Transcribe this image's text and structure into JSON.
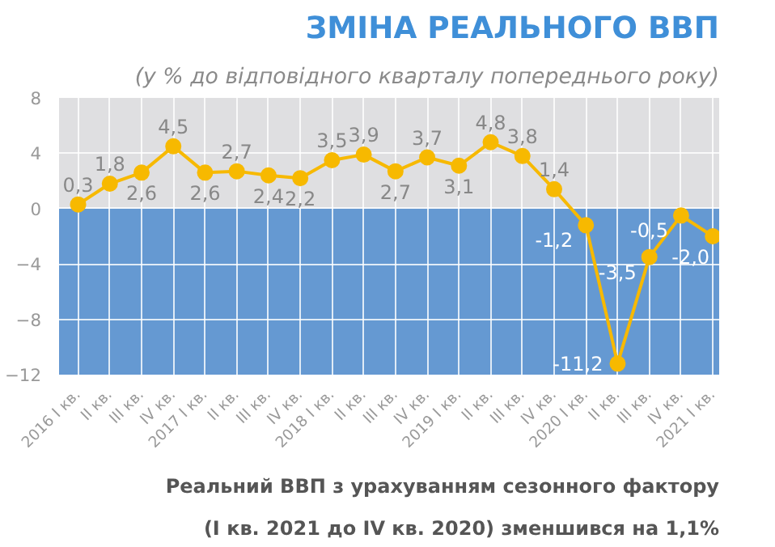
{
  "chart_data": {
    "type": "line",
    "title": "ЗМІНА РЕАЛЬНОГО ВВП",
    "subtitle": "(у % до відповідного кварталу попереднього року)",
    "categories": [
      "2016 I кв.",
      "II кв.",
      "III кв.",
      "IV кв.",
      "2017 I кв.",
      "II кв.",
      "III кв.",
      "IV кв.",
      "2018 I кв.",
      "II кв.",
      "III кв.",
      "IV кв.",
      "2019 I кв.",
      "II кв.",
      "III кв.",
      "IV кв.",
      "2020 I кв.",
      "II кв.",
      "III кв.",
      "IV кв.",
      "2021 I кв."
    ],
    "series": [
      {
        "color": "#f7b900",
        "values": [
          0.3,
          1.8,
          2.6,
          4.5,
          2.6,
          2.7,
          2.4,
          2.2,
          3.5,
          3.9,
          2.7,
          3.7,
          3.1,
          4.8,
          3.8,
          1.4,
          -1.2,
          -11.2,
          -3.5,
          -0.5,
          -2.0
        ],
        "value_labels": [
          "0,3",
          "1,8",
          "2,6",
          "4,5",
          "2,6",
          "2,7",
          "2,4",
          "2,2",
          "3,5",
          "3,9",
          "2,7",
          "3,7",
          "3,1",
          "4,8",
          "3,8",
          "1,4",
          "-1,2",
          "-11,2",
          "-3,5",
          "-0,5",
          "-2,0"
        ]
      }
    ],
    "ylim": [
      -12,
      8
    ],
    "yticks": [
      -12,
      -8,
      -4,
      0,
      4,
      8
    ],
    "grid": true,
    "marker": "circle",
    "line_style": "solid",
    "bands": [
      {
        "axis": "y",
        "from": 0,
        "to": 8,
        "color": "#dfdfe1"
      },
      {
        "axis": "y",
        "from": -12,
        "to": 0,
        "color": "#6599d2"
      }
    ],
    "annotations": [
      "Реальний ВВП з урахуванням сезонного фактору (I кв. 2021 до IV кв. 2020) зменшився на 1,1%"
    ]
  }
}
